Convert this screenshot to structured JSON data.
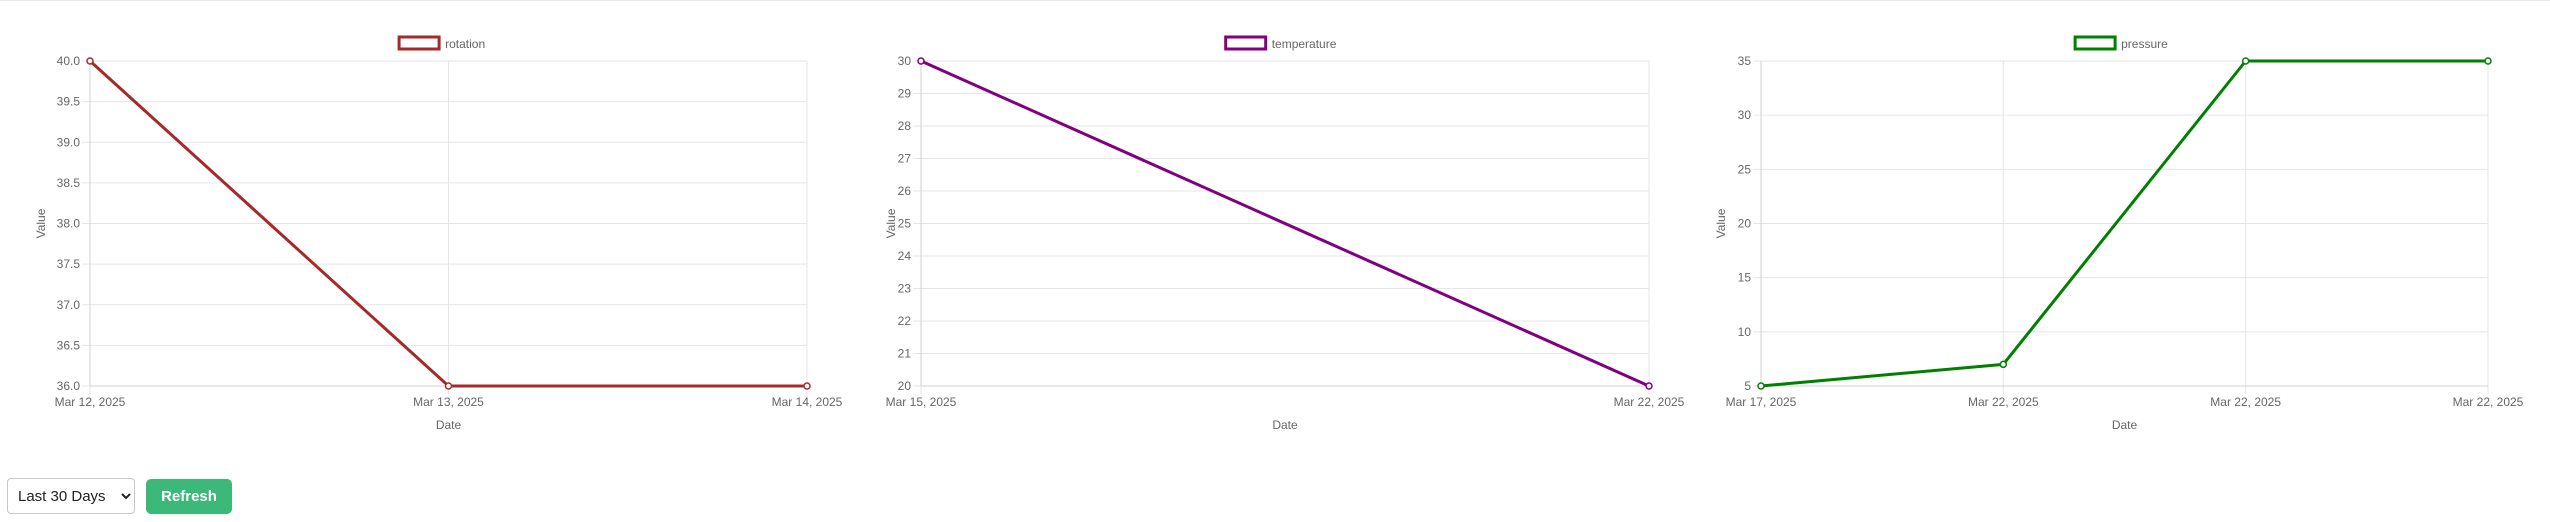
{
  "chart_data": [
    {
      "type": "line",
      "series": [
        {
          "name": "rotation",
          "x": [
            "Mar 12, 2025",
            "Mar 13, 2025",
            "Mar 14, 2025"
          ],
          "values": [
            40.0,
            36.0,
            36.0
          ]
        }
      ],
      "categories": [
        "Mar 12, 2025",
        "Mar 13, 2025",
        "Mar 14, 2025"
      ],
      "xlabel": "Date",
      "ylabel": "Value",
      "ylim": [
        36.0,
        40.0
      ],
      "yticks": [
        "40.0",
        "39.5",
        "39.0",
        "38.5",
        "38.0",
        "37.5",
        "37.0",
        "36.5",
        "36.0"
      ],
      "color": "#a52a2a",
      "legend": "top",
      "grid": true
    },
    {
      "type": "line",
      "series": [
        {
          "name": "temperature",
          "x": [
            "Mar 15, 2025",
            "Mar 22, 2025"
          ],
          "values": [
            30,
            20
          ]
        }
      ],
      "categories": [
        "Mar 15, 2025",
        "Mar 22, 2025"
      ],
      "xlabel": "Date",
      "ylabel": "Value",
      "ylim": [
        20,
        30
      ],
      "yticks": [
        "30",
        "29",
        "28",
        "27",
        "26",
        "25",
        "24",
        "23",
        "22",
        "21",
        "20"
      ],
      "color": "#800080",
      "legend": "top",
      "grid": true
    },
    {
      "type": "line",
      "series": [
        {
          "name": "pressure",
          "x": [
            "Mar 17, 2025",
            "Mar 22, 2025",
            "Mar 22, 2025",
            "Mar 22, 2025"
          ],
          "values": [
            5,
            7,
            35,
            35
          ]
        }
      ],
      "categories": [
        "Mar 17, 2025",
        "Mar 22, 2025",
        "Mar 22, 2025",
        "Mar 22, 2025"
      ],
      "xlabel": "Date",
      "ylabel": "Value",
      "ylim": [
        5,
        35
      ],
      "yticks": [
        "35",
        "30",
        "25",
        "20",
        "15",
        "10",
        "5"
      ],
      "color": "#008000",
      "legend": "top",
      "grid": true
    }
  ],
  "controls": {
    "range_selected": "Last 30 Days",
    "refresh_label": "Refresh"
  }
}
